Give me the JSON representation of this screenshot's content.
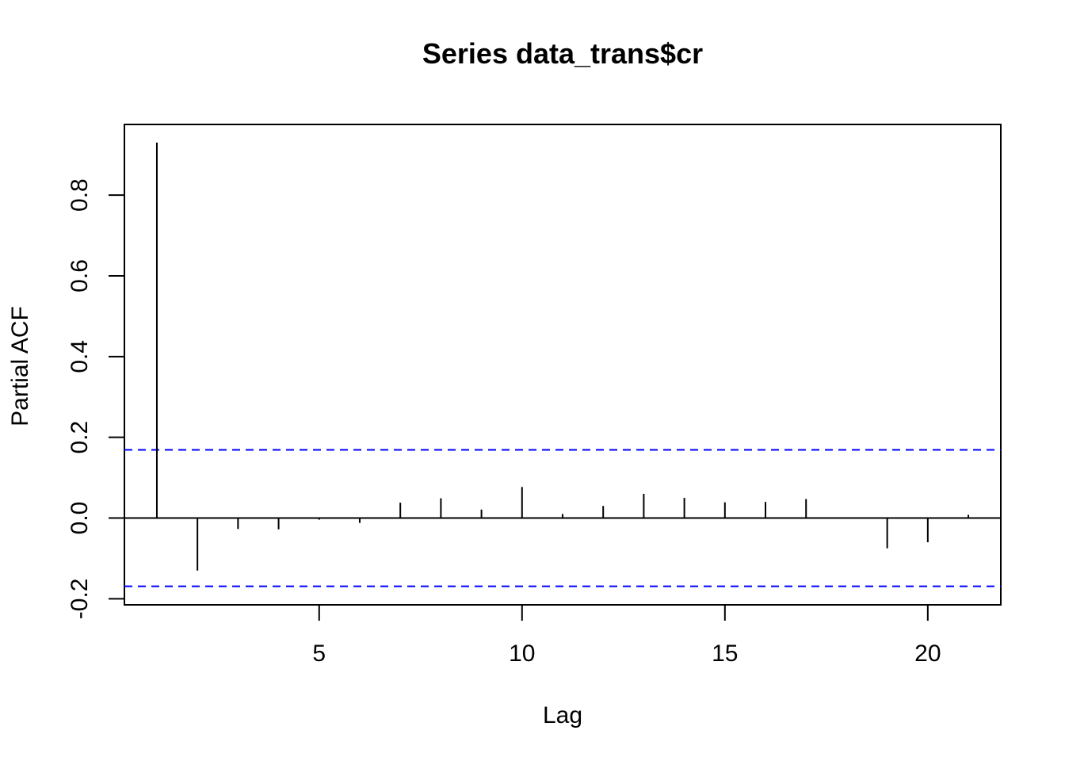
{
  "chart_data": {
    "type": "bar",
    "title": "Series  data_trans$cr",
    "xlabel": "Lag",
    "ylabel": "Partial ACF",
    "xlim": [
      0.2,
      21.8
    ],
    "ylim": [
      -0.215,
      0.975
    ],
    "x_ticks": [
      5,
      10,
      15,
      20
    ],
    "y_ticks": [
      -0.2,
      0.0,
      0.2,
      0.4,
      0.6,
      0.8
    ],
    "y_tick_labels": [
      "-0.2",
      "0.0",
      "0.2",
      "0.4",
      "0.6",
      "0.8"
    ],
    "lags": [
      1,
      2,
      3,
      4,
      5,
      6,
      7,
      8,
      9,
      10,
      11,
      12,
      13,
      14,
      15,
      16,
      17,
      18,
      19,
      20,
      21
    ],
    "values": [
      0.93,
      -0.13,
      -0.027,
      -0.028,
      -0.004,
      -0.012,
      0.038,
      0.049,
      0.021,
      0.077,
      0.01,
      0.03,
      0.06,
      0.05,
      0.039,
      0.04,
      0.047,
      0.002,
      -0.075,
      -0.06,
      0.008
    ],
    "confidence_limit": 0.169,
    "zero_line_color": "#000000",
    "ci_line_color": "#0000ff",
    "grid": false,
    "legend": "none"
  }
}
